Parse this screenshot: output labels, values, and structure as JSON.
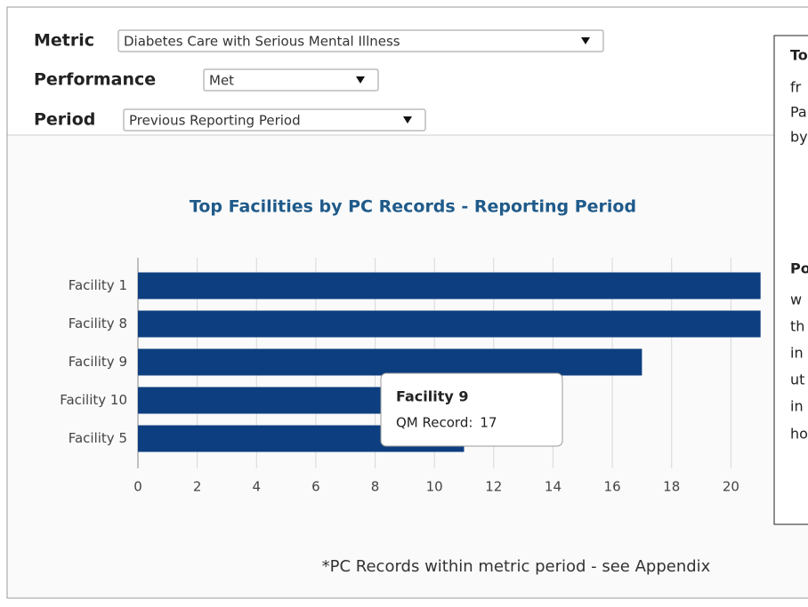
{
  "controls": [
    {
      "label": "Metric",
      "selected": "Diabetes Care with Serious Mental Illness"
    },
    {
      "label": "Performance",
      "selected": "Met"
    },
    {
      "label": "Period",
      "selected": "Previous Reporting Period"
    }
  ],
  "note": {
    "lines": [
      {
        "text": "To",
        "bold": true
      },
      {
        "text": "fr",
        "bold": false
      },
      {
        "text": "Pa",
        "bold": false
      },
      {
        "text": "by",
        "bold": false
      },
      {
        "text": "Po",
        "bold": true
      },
      {
        "text": "w",
        "bold": false
      },
      {
        "text": "th",
        "bold": false
      },
      {
        "text": "in",
        "bold": false
      },
      {
        "text": "ut",
        "bold": false
      },
      {
        "text": "in",
        "bold": false
      },
      {
        "text": "ho",
        "bold": false
      }
    ]
  },
  "chart_data": {
    "type": "bar",
    "orientation": "horizontal",
    "title": "Top Facilities by PC Records - Reporting Period",
    "categories": [
      "Facility 1",
      "Facility 8",
      "Facility 9",
      "Facility 10",
      "Facility 5"
    ],
    "values": [
      21,
      21,
      17,
      12,
      11
    ],
    "color": "#0d3f80",
    "xlim": [
      0,
      22
    ],
    "xticks": [
      0,
      2,
      4,
      6,
      8,
      10,
      12,
      14,
      16,
      18,
      20,
      22
    ],
    "grid": true,
    "tooltip": {
      "category_index": 2,
      "label": "QM Record:"
    },
    "footnote": "*PC Records within metric period - see Appendix"
  }
}
